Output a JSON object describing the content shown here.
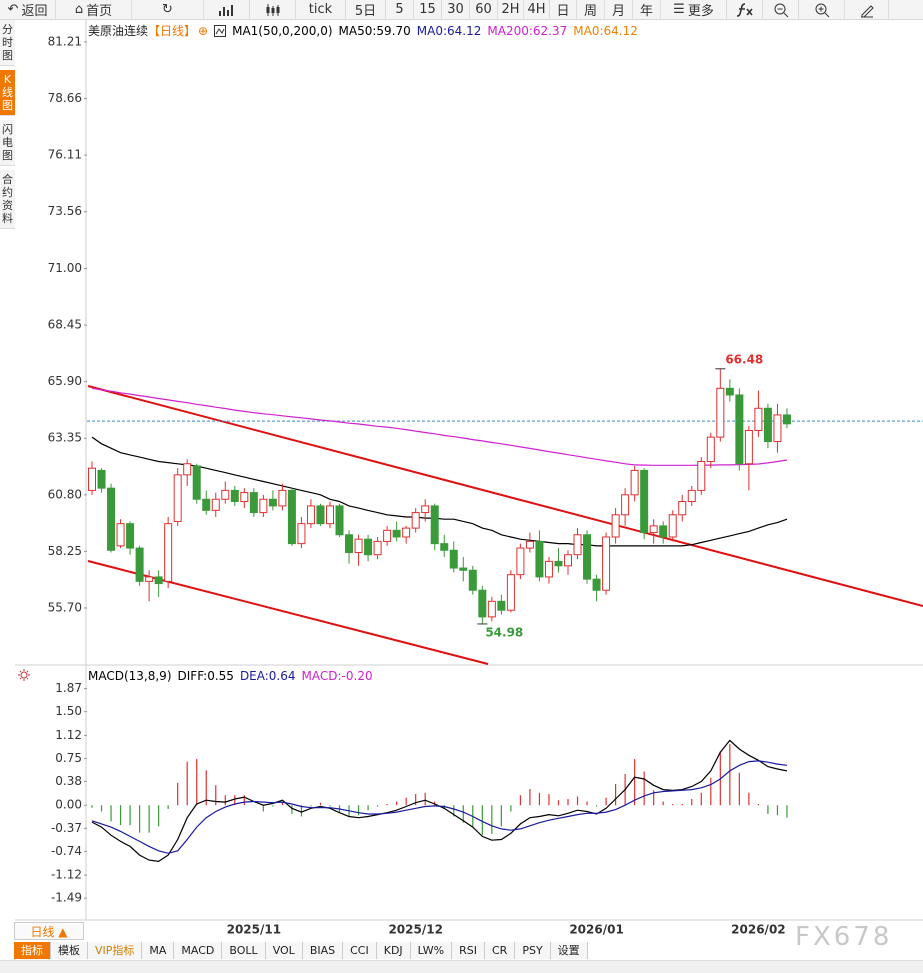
{
  "toolbar": [
    "返回",
    "首页",
    "tick",
    "5日",
    "5",
    "15",
    "30",
    "60",
    "2H",
    "4H",
    "日",
    "周",
    "月",
    "年",
    "更多"
  ],
  "sidebar": [
    "分时图",
    "K线图",
    "闪电图",
    "合约资料"
  ],
  "tabs": [
    "指标",
    "模板",
    "VIP指标",
    "MA",
    "MACD",
    "BOLL",
    "VOL",
    "BIAS",
    "CCI",
    "KDJ",
    "LW%",
    "RSI",
    "CR",
    "PSY",
    "设置"
  ],
  "period_selector": "日线 ▲",
  "watermark": "FX678",
  "chart_data": [
    {
      "type": "candlestick",
      "title": "美原油连续",
      "period": "【日线】",
      "legend": [
        {
          "label": "MA1(50,0,200,0)",
          "color": "#000000"
        },
        {
          "label": "MA50:59.70",
          "color": "#000000"
        },
        {
          "label": "MA0:64.12",
          "value": 64.12,
          "color": "#1a1aa0"
        },
        {
          "label": "MA200:62.37",
          "color": "#d020d0"
        },
        {
          "label": "MA0:64.12",
          "color": "#f08000"
        }
      ],
      "up_color": "#e03030",
      "down_color": "#3a9a3a",
      "ylim": [
        53.13,
        82.2
      ],
      "yticks": [
        81.21,
        78.66,
        76.11,
        73.56,
        {
          "value": 71,
          "label": "71.00"
        },
        68.45,
        {
          "value": 65.9,
          "label": "65.90"
        },
        63.35,
        {
          "value": 60.8,
          "label": "60.80"
        },
        58.25,
        {
          "value": 55.7,
          "label": "55.70"
        }
      ],
      "ohlc": [
        [
          61.0,
          62.3,
          60.8,
          62.0
        ],
        [
          61.9,
          62.0,
          60.9,
          61.1
        ],
        [
          61.1,
          61.3,
          58.2,
          58.3
        ],
        [
          58.5,
          59.7,
          58.4,
          59.5
        ],
        [
          59.5,
          59.6,
          58.1,
          58.4
        ],
        [
          58.4,
          58.5,
          56.7,
          56.9
        ],
        [
          56.9,
          57.4,
          56.0,
          57.1
        ],
        [
          57.1,
          57.4,
          56.2,
          56.8
        ],
        [
          56.9,
          59.8,
          56.6,
          59.5
        ],
        [
          59.6,
          62.0,
          59.4,
          61.7
        ],
        [
          61.7,
          62.4,
          61.2,
          62.2
        ],
        [
          62.1,
          62.2,
          60.4,
          60.6
        ],
        [
          60.6,
          61.0,
          59.9,
          60.1
        ],
        [
          60.1,
          60.9,
          59.8,
          60.6
        ],
        [
          60.6,
          61.4,
          60.4,
          61.0
        ],
        [
          61.0,
          61.2,
          60.3,
          60.5
        ],
        [
          60.5,
          61.1,
          60.2,
          60.9
        ],
        [
          60.9,
          61.1,
          59.8,
          60.0
        ],
        [
          60.0,
          60.8,
          59.8,
          60.6
        ],
        [
          60.6,
          61.0,
          60.1,
          60.3
        ],
        [
          60.3,
          61.3,
          60.1,
          61.0
        ],
        [
          61.0,
          61.1,
          58.5,
          58.6
        ],
        [
          58.6,
          59.8,
          58.4,
          59.5
        ],
        [
          59.5,
          60.6,
          59.3,
          60.3
        ],
        [
          60.3,
          60.4,
          59.4,
          59.5
        ],
        [
          59.5,
          60.5,
          59.3,
          60.3
        ],
        [
          60.3,
          60.4,
          58.9,
          59.0
        ],
        [
          59.0,
          59.2,
          57.7,
          58.2
        ],
        [
          58.2,
          59.0,
          57.6,
          58.8
        ],
        [
          58.8,
          59.0,
          57.8,
          58.1
        ],
        [
          58.1,
          58.9,
          57.9,
          58.7
        ],
        [
          58.7,
          59.4,
          58.5,
          59.2
        ],
        [
          59.2,
          59.6,
          58.7,
          58.9
        ],
        [
          58.9,
          59.4,
          58.6,
          59.3
        ],
        [
          59.3,
          60.2,
          59.1,
          60.0
        ],
        [
          60.0,
          60.6,
          59.6,
          60.3
        ],
        [
          60.3,
          60.4,
          58.3,
          58.6
        ],
        [
          58.6,
          59.0,
          58.0,
          58.3
        ],
        [
          58.3,
          58.7,
          57.3,
          57.5
        ],
        [
          57.5,
          58.0,
          56.9,
          57.4
        ],
        [
          57.4,
          57.6,
          56.3,
          56.5
        ],
        [
          56.5,
          56.7,
          54.98,
          55.3
        ],
        [
          55.3,
          56.2,
          55.1,
          56.0
        ],
        [
          56.0,
          56.3,
          55.4,
          55.6
        ],
        [
          55.6,
          57.4,
          55.5,
          57.2
        ],
        [
          57.2,
          58.6,
          57.0,
          58.4
        ],
        [
          58.4,
          59.1,
          58.2,
          58.7
        ],
        [
          58.7,
          59.2,
          56.9,
          57.1
        ],
        [
          57.1,
          58.0,
          56.8,
          57.8
        ],
        [
          57.8,
          58.4,
          57.3,
          57.6
        ],
        [
          57.6,
          58.3,
          57.2,
          58.1
        ],
        [
          58.1,
          59.3,
          57.9,
          59.0
        ],
        [
          59.0,
          59.2,
          56.8,
          57.0
        ],
        [
          57.0,
          57.2,
          56.0,
          56.5
        ],
        [
          56.5,
          59.1,
          56.3,
          58.9
        ],
        [
          58.9,
          60.2,
          58.6,
          59.9
        ],
        [
          59.9,
          61.1,
          59.4,
          60.8
        ],
        [
          60.8,
          62.1,
          60.5,
          61.9
        ],
        [
          61.9,
          62.0,
          58.8,
          59.1
        ],
        [
          59.1,
          59.7,
          58.6,
          59.4
        ],
        [
          59.4,
          59.6,
          58.6,
          58.9
        ],
        [
          58.9,
          60.1,
          58.7,
          59.9
        ],
        [
          59.9,
          60.8,
          59.6,
          60.5
        ],
        [
          60.5,
          61.2,
          60.3,
          61.0
        ],
        [
          61.0,
          62.5,
          60.8,
          62.3
        ],
        [
          62.3,
          63.6,
          62.0,
          63.4
        ],
        [
          63.4,
          66.48,
          63.2,
          65.6
        ],
        [
          65.6,
          66.0,
          65.0,
          65.3
        ],
        [
          65.3,
          65.6,
          61.9,
          62.2
        ],
        [
          62.2,
          63.9,
          61.0,
          63.7
        ],
        [
          63.7,
          65.5,
          63.4,
          64.7
        ],
        [
          64.7,
          64.9,
          62.9,
          63.2
        ],
        [
          63.2,
          64.9,
          62.7,
          64.4
        ],
        [
          64.4,
          64.7,
          63.8,
          64.0
        ]
      ],
      "ma_lines": [
        {
          "color": "#000000",
          "values": [
            63.4,
            63.1,
            62.9,
            62.7,
            62.6,
            62.5,
            62.4,
            62.3,
            62.25,
            62.2,
            62.15,
            62.1,
            62.0,
            61.9,
            61.8,
            61.7,
            61.6,
            61.5,
            61.4,
            61.3,
            61.2,
            61.1,
            61.0,
            60.9,
            60.8,
            60.6,
            60.5,
            60.3,
            60.2,
            60.1,
            60.0,
            59.9,
            59.85,
            59.8,
            59.8,
            59.75,
            59.75,
            59.7,
            59.7,
            59.6,
            59.5,
            59.3,
            59.2,
            59.0,
            58.9,
            58.8,
            58.75,
            58.7,
            58.65,
            58.6,
            58.6,
            58.55,
            58.55,
            58.5,
            58.5,
            58.5,
            58.5,
            58.5,
            58.5,
            58.5,
            58.5,
            58.5,
            58.5,
            58.55,
            58.65,
            58.75,
            58.85,
            58.95,
            59.05,
            59.15,
            59.3,
            59.45,
            59.55,
            59.7
          ]
        },
        {
          "color": "#d020d0",
          "values": [
            65.6,
            65.53,
            65.47,
            65.4,
            65.34,
            65.27,
            65.21,
            65.14,
            65.08,
            65.01,
            64.95,
            64.88,
            64.82,
            64.75,
            64.69,
            64.62,
            64.56,
            64.5,
            64.45,
            64.41,
            64.36,
            64.31,
            64.27,
            64.22,
            64.17,
            64.13,
            64.08,
            64.03,
            63.99,
            63.94,
            63.89,
            63.85,
            63.8,
            63.74,
            63.67,
            63.61,
            63.55,
            63.48,
            63.42,
            63.36,
            63.29,
            63.23,
            63.16,
            63.1,
            63.03,
            62.96,
            62.89,
            62.82,
            62.75,
            62.68,
            62.61,
            62.54,
            62.47,
            62.4,
            62.33,
            62.27,
            62.2,
            62.15,
            62.14,
            62.13,
            62.13,
            62.13,
            62.13,
            62.13,
            62.14,
            62.14,
            62.15,
            62.15,
            62.16,
            62.17,
            62.19,
            62.24,
            62.3,
            62.37
          ]
        }
      ]
    },
    {
      "type": "macd",
      "legend": [
        {
          "label": "MACD(13,8,9)",
          "color": "#000000"
        },
        {
          "label": "DIFF:0.55",
          "color": "#000000"
        },
        {
          "label": "DEA:0.64",
          "color": "#1a1aa0"
        },
        {
          "label": "MACD:-0.20",
          "color": "#d020d0"
        }
      ],
      "up_color": "#e03030",
      "down_color": "#3a9a3a",
      "ylim": [
        -1.84,
        2.2
      ],
      "yticks": [
        1.87,
        {
          "value": 1.5,
          "label": "1.50"
        },
        1.12,
        0.75,
        0.38,
        {
          "value": 0,
          "label": "0.00"
        },
        -0.37,
        -0.74,
        -1.12,
        -1.49
      ],
      "categories": [
        null,
        null,
        null,
        null,
        null,
        null,
        null,
        null,
        null,
        null,
        null,
        null,
        null,
        null,
        null,
        null,
        null,
        "2025/11",
        null,
        null,
        null,
        null,
        null,
        null,
        null,
        null,
        null,
        null,
        null,
        null,
        null,
        null,
        null,
        null,
        "2025/12",
        null,
        null,
        null,
        null,
        null,
        null,
        null,
        null,
        null,
        null,
        null,
        null,
        null,
        null,
        null,
        null,
        null,
        null,
        "2026/01",
        null,
        null,
        null,
        null,
        null,
        null,
        null,
        null,
        null,
        null,
        null,
        null,
        null,
        null,
        null,
        null,
        "2026/02",
        null,
        null,
        null
      ],
      "lines": [
        {
          "color": "#000000",
          "values": [
            -0.27,
            -0.35,
            -0.48,
            -0.58,
            -0.66,
            -0.8,
            -0.88,
            -0.9,
            -0.8,
            -0.55,
            -0.2,
            0.02,
            0.08,
            0.06,
            0.05,
            0.1,
            0.13,
            0.06,
            0.0,
            0.03,
            0.08,
            -0.05,
            -0.11,
            -0.05,
            -0.02,
            -0.05,
            -0.12,
            -0.18,
            -0.2,
            -0.18,
            -0.15,
            -0.12,
            -0.08,
            -0.02,
            0.04,
            0.08,
            0.02,
            -0.05,
            -0.15,
            -0.25,
            -0.35,
            -0.5,
            -0.56,
            -0.55,
            -0.45,
            -0.3,
            -0.2,
            -0.18,
            -0.15,
            -0.17,
            -0.13,
            -0.08,
            -0.1,
            -0.14,
            -0.05,
            0.1,
            0.25,
            0.45,
            0.42,
            0.32,
            0.25,
            0.24,
            0.25,
            0.3,
            0.38,
            0.55,
            0.85,
            1.04,
            0.9,
            0.8,
            0.72,
            0.62,
            0.58,
            0.55
          ]
        },
        {
          "color": "#1a1aa0",
          "values": [
            -0.25,
            -0.3,
            -0.35,
            -0.42,
            -0.5,
            -0.58,
            -0.66,
            -0.73,
            -0.77,
            -0.73,
            -0.55,
            -0.35,
            -0.2,
            -0.1,
            -0.03,
            0.02,
            0.05,
            0.06,
            0.05,
            0.04,
            0.05,
            0.02,
            -0.02,
            -0.04,
            -0.04,
            -0.04,
            -0.06,
            -0.09,
            -0.12,
            -0.14,
            -0.14,
            -0.13,
            -0.11,
            -0.08,
            -0.05,
            -0.02,
            -0.01,
            -0.02,
            -0.06,
            -0.11,
            -0.18,
            -0.26,
            -0.33,
            -0.38,
            -0.4,
            -0.38,
            -0.33,
            -0.28,
            -0.24,
            -0.21,
            -0.18,
            -0.15,
            -0.13,
            -0.13,
            -0.11,
            -0.07,
            0.0,
            0.08,
            0.15,
            0.2,
            0.22,
            0.23,
            0.24,
            0.25,
            0.28,
            0.33,
            0.42,
            0.55,
            0.64,
            0.7,
            0.71,
            0.69,
            0.66,
            0.64
          ]
        }
      ],
      "histogram": [
        -0.04,
        -0.1,
        -0.26,
        -0.32,
        -0.32,
        -0.44,
        -0.44,
        -0.34,
        -0.06,
        0.36,
        0.7,
        0.74,
        0.56,
        0.32,
        0.16,
        0.16,
        0.16,
        0.0,
        -0.1,
        -0.02,
        0.06,
        -0.14,
        -0.18,
        -0.02,
        0.04,
        -0.02,
        -0.12,
        -0.18,
        -0.16,
        -0.08,
        -0.02,
        0.02,
        0.06,
        0.12,
        0.18,
        0.2,
        0.06,
        -0.06,
        -0.18,
        -0.28,
        -0.34,
        -0.48,
        -0.46,
        -0.34,
        -0.1,
        0.16,
        0.26,
        0.2,
        0.18,
        0.08,
        0.1,
        0.14,
        0.06,
        -0.02,
        0.12,
        0.34,
        0.5,
        0.74,
        0.54,
        0.24,
        0.06,
        0.02,
        0.02,
        0.1,
        0.2,
        0.44,
        0.86,
        0.98,
        0.52,
        0.2,
        0.02,
        -0.14,
        -0.16,
        -0.2
      ]
    }
  ]
}
